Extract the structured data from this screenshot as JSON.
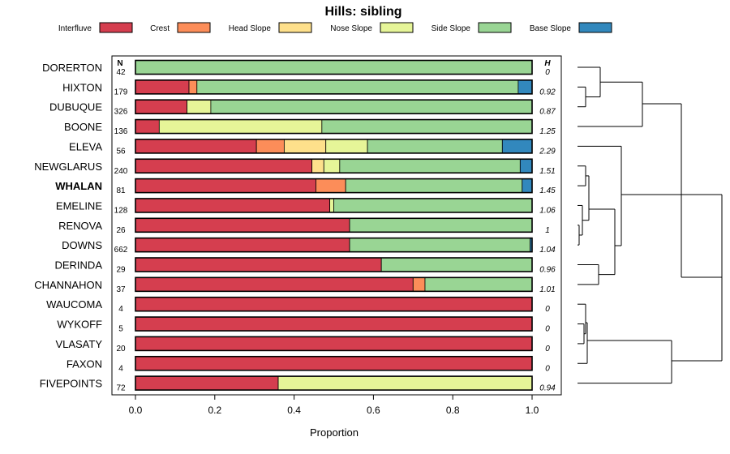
{
  "chart_data": {
    "type": "bar",
    "orientation": "horizontal-stacked",
    "title": "Hills: sibling",
    "xlabel": "Proportion",
    "ylabel": "",
    "xlim": [
      0,
      1
    ],
    "xticks": [
      "0.0",
      "0.2",
      "0.4",
      "0.6",
      "0.8",
      "1.0"
    ],
    "legend_position": "top",
    "series_names": [
      "Interfluve",
      "Crest",
      "Head Slope",
      "Nose Slope",
      "Side Slope",
      "Base Slope"
    ],
    "colors": [
      "#d53e4f",
      "#fc8d59",
      "#fee08b",
      "#e6f598",
      "#99d594",
      "#3288bd"
    ],
    "n_header": "N",
    "h_header": "H",
    "highlight": "WHALAN",
    "rows": [
      {
        "name": "DORERTON",
        "n": "42",
        "h": "0",
        "values": [
          0,
          0,
          0,
          0,
          1.0,
          0
        ]
      },
      {
        "name": "HIXTON",
        "n": "179",
        "h": "0.92",
        "values": [
          0.135,
          0.02,
          0,
          0,
          0.81,
          0.035
        ]
      },
      {
        "name": "DUBUQUE",
        "n": "326",
        "h": "0.87",
        "values": [
          0.13,
          0,
          0,
          0.06,
          0.81,
          0
        ]
      },
      {
        "name": "BOONE",
        "n": "136",
        "h": "1.25",
        "values": [
          0.06,
          0,
          0,
          0.41,
          0.53,
          0
        ]
      },
      {
        "name": "ELEVA",
        "n": "56",
        "h": "2.29",
        "values": [
          0.305,
          0.07,
          0.105,
          0.105,
          0.34,
          0.075
        ]
      },
      {
        "name": "NEWGLARUS",
        "n": "240",
        "h": "1.51",
        "values": [
          0.445,
          0,
          0.03,
          0.04,
          0.455,
          0.03
        ]
      },
      {
        "name": "WHALAN",
        "n": "81",
        "h": "1.45",
        "values": [
          0.455,
          0.075,
          0,
          0,
          0.445,
          0.025
        ]
      },
      {
        "name": "EMELINE",
        "n": "128",
        "h": "1.06",
        "values": [
          0.49,
          0,
          0,
          0.01,
          0.5,
          0
        ]
      },
      {
        "name": "RENOVA",
        "n": "26",
        "h": "1",
        "values": [
          0.54,
          0,
          0,
          0,
          0.46,
          0
        ]
      },
      {
        "name": "DOWNS",
        "n": "662",
        "h": "1.04",
        "values": [
          0.54,
          0,
          0,
          0,
          0.455,
          0.005
        ]
      },
      {
        "name": "DERINDA",
        "n": "29",
        "h": "0.96",
        "values": [
          0.62,
          0,
          0,
          0,
          0.38,
          0
        ]
      },
      {
        "name": "CHANNAHON",
        "n": "37",
        "h": "1.01",
        "values": [
          0.7,
          0.03,
          0,
          0,
          0.27,
          0
        ]
      },
      {
        "name": "WAUCOMA",
        "n": "4",
        "h": "0",
        "values": [
          1.0,
          0,
          0,
          0,
          0,
          0
        ]
      },
      {
        "name": "WYKOFF",
        "n": "5",
        "h": "0",
        "values": [
          1.0,
          0,
          0,
          0,
          0,
          0
        ]
      },
      {
        "name": "VLASATY",
        "n": "20",
        "h": "0",
        "values": [
          1.0,
          0,
          0,
          0,
          0,
          0
        ]
      },
      {
        "name": "FAXON",
        "n": "4",
        "h": "0",
        "values": [
          1.0,
          0,
          0,
          0,
          0,
          0
        ]
      },
      {
        "name": "FIVEPOINTS",
        "n": "72",
        "h": "0.94",
        "values": [
          0.36,
          0,
          0,
          0.64,
          0,
          0
        ]
      }
    ],
    "dendrogram": {
      "description": "hierarchical clustering of row profiles",
      "merges": [
        {
          "a": 0,
          "b": 1,
          "height": 0.25
        },
        {
          "a": 0,
          "b": 1,
          "left": "leaf:1",
          "right": "leaf:2",
          "height": 0.08
        }
      ]
    }
  }
}
